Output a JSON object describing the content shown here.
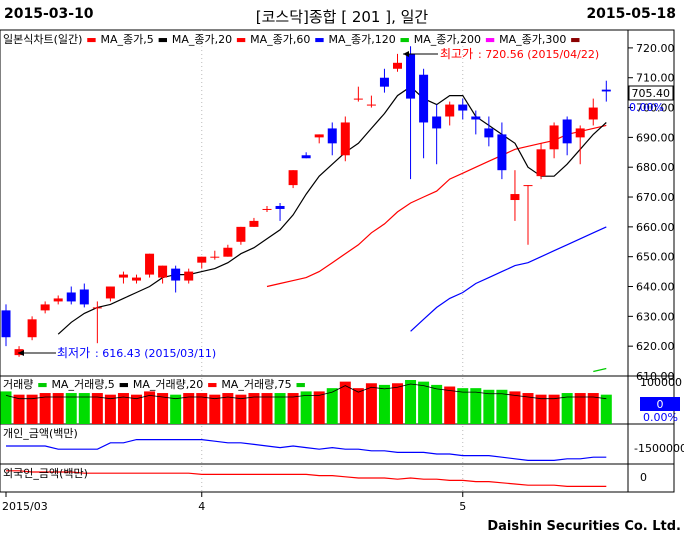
{
  "header": {
    "start_date": "2015-03-10",
    "title": "[코스닥]종합  [ 201 ],  일간",
    "end_date": "2015-05-18"
  },
  "footer": {
    "brand": "Daishin Securities Co. Ltd.",
    "period_label": "2015/03"
  },
  "colors": {
    "up": "#ff0000",
    "down": "#0000ff",
    "ma5": "#000000",
    "ma20": "#ff0000",
    "ma60": "#0000ff",
    "volume": "#00dd00"
  },
  "price_panel": {
    "legend": [
      {
        "text": "일본식차트(일간)",
        "color": "#ff0000"
      },
      {
        "text": "MA_종가,5",
        "color": "#000000"
      },
      {
        "text": "MA_종가,20",
        "color": "#ff0000"
      },
      {
        "text": "MA_종가,60",
        "color": "#0000ff"
      },
      {
        "text": "MA_종가,120",
        "color": "#00cc00"
      },
      {
        "text": "MA_종가,200",
        "color": "#ff00ff"
      },
      {
        "text": "MA_종가,300",
        "color": "#8b0000"
      }
    ],
    "high_prefix": "최고가",
    "high_value": ": 720.56 (2015/04/22)",
    "low_prefix": "최저가",
    "low_value": ": 616.43 (2015/03/11)",
    "current_price": "705.40",
    "current_change": "0.00%"
  },
  "volume_panel": {
    "legend": [
      {
        "text": "거래량",
        "color": "#00cc00"
      },
      {
        "text": "MA_거래량,5",
        "color": "#000000"
      },
      {
        "text": "MA_거래량,20",
        "color": "#ff0000"
      },
      {
        "text": "MA_거래량,75",
        "color": "#00cc00"
      }
    ],
    "tick": "100000",
    "current_value": "0",
    "current_change": "0.00%"
  },
  "individual_panel": {
    "legend": "개인_금액(백만)",
    "tick": "-1500000"
  },
  "foreign_panel": {
    "legend": "외국인_금액(백만)",
    "tick": "0"
  },
  "chart_data": {
    "type": "candlestick",
    "title": "[코스닥]종합  [ 201 ],  일간",
    "y_ticks": [
      610,
      620,
      630,
      640,
      650,
      660,
      670,
      680,
      690,
      700,
      710,
      720
    ],
    "ylim": [
      610,
      726
    ],
    "x_ticks": [
      "2015/03",
      "4",
      "5"
    ],
    "x_tick_index": [
      0,
      15,
      35
    ],
    "ohlc": [
      [
        632,
        634,
        620,
        623
      ],
      [
        617,
        620,
        616.43,
        619
      ],
      [
        623,
        630,
        622,
        629
      ],
      [
        632,
        635,
        631,
        634
      ],
      [
        635,
        637,
        634,
        636
      ],
      [
        638,
        640,
        634,
        635
      ],
      [
        639,
        641,
        633,
        634
      ],
      [
        633,
        635,
        621,
        633
      ],
      [
        636,
        640,
        635,
        640
      ],
      [
        643,
        645,
        641,
        644
      ],
      [
        642,
        644,
        641,
        643
      ],
      [
        644,
        651,
        643,
        651
      ],
      [
        643,
        647,
        641,
        647
      ],
      [
        646,
        647,
        638,
        642
      ],
      [
        642,
        646,
        641,
        645
      ],
      [
        648,
        650,
        646,
        650
      ],
      [
        650,
        652,
        649,
        650
      ],
      [
        650,
        654,
        650,
        653
      ],
      [
        655,
        660,
        654,
        660
      ],
      [
        660,
        663,
        660,
        662
      ],
      [
        666,
        667,
        665,
        666
      ],
      [
        667,
        668,
        662,
        666
      ],
      [
        674,
        679,
        673,
        679
      ],
      [
        684,
        685,
        683,
        683
      ],
      [
        690,
        691,
        688,
        691
      ],
      [
        693,
        695,
        684,
        688
      ],
      [
        684,
        697,
        682,
        695
      ],
      [
        703,
        707,
        702,
        703
      ],
      [
        701,
        704,
        700,
        701
      ],
      [
        710,
        713,
        705,
        707
      ],
      [
        713,
        718,
        712,
        715
      ],
      [
        718,
        720.56,
        676,
        703
      ],
      [
        711,
        713,
        683,
        695
      ],
      [
        697,
        701,
        681,
        693
      ],
      [
        697,
        702,
        694,
        701
      ],
      [
        701,
        703,
        696,
        699
      ],
      [
        697,
        699,
        691,
        696
      ],
      [
        693,
        697,
        687,
        690
      ],
      [
        691,
        695,
        676,
        679
      ],
      [
        669,
        679,
        662,
        671
      ],
      [
        674,
        674,
        654,
        674
      ],
      [
        677,
        688,
        676,
        686
      ],
      [
        686,
        695,
        683,
        694
      ],
      [
        696,
        697,
        684,
        688
      ],
      [
        690,
        694,
        681,
        693
      ],
      [
        696,
        703,
        694,
        700
      ],
      [
        706,
        709,
        702,
        705.4
      ]
    ],
    "ma5": [
      null,
      null,
      null,
      null,
      624,
      628,
      631,
      633,
      634,
      636,
      638,
      640,
      643,
      644,
      644,
      645,
      646,
      648,
      651,
      653,
      656,
      659,
      664,
      671,
      677,
      681,
      685,
      688,
      693,
      698,
      704,
      707,
      703,
      701,
      704,
      704,
      697,
      694,
      691,
      688,
      680,
      677,
      677,
      681,
      686,
      691,
      695
    ],
    "ma20": [
      null,
      null,
      null,
      null,
      null,
      null,
      null,
      null,
      null,
      null,
      null,
      null,
      null,
      null,
      null,
      null,
      null,
      null,
      null,
      null,
      640,
      641,
      642,
      643,
      645,
      648,
      651,
      654,
      658,
      661,
      665,
      668,
      670,
      672,
      676,
      678,
      680,
      682,
      684,
      686,
      687,
      688,
      689,
      691,
      692,
      693,
      694
    ],
    "ma60": [
      null,
      null,
      null,
      null,
      null,
      null,
      null,
      null,
      null,
      null,
      null,
      null,
      null,
      null,
      null,
      null,
      null,
      null,
      null,
      null,
      null,
      null,
      null,
      null,
      null,
      null,
      null,
      null,
      null,
      null,
      null,
      625,
      629,
      633,
      636,
      638,
      641,
      643,
      645,
      647,
      648,
      650,
      652,
      654,
      656,
      658,
      660
    ],
    "ma120": [
      null,
      null,
      null,
      null,
      null,
      null,
      null,
      null,
      null,
      null,
      null,
      null,
      null,
      null,
      null,
      null,
      null,
      null,
      null,
      null,
      null,
      null,
      null,
      null,
      null,
      null,
      null,
      null,
      null,
      null,
      null,
      null,
      null,
      null,
      null,
      null,
      null,
      null,
      null,
      null,
      null,
      null,
      null,
      null,
      null,
      611.5,
      612.5
    ],
    "volume_ylim": [
      0,
      1.35
    ],
    "volume": [
      1.0,
      0.9,
      0.9,
      0.95,
      0.95,
      0.95,
      0.95,
      0.95,
      0.9,
      0.95,
      0.9,
      1.0,
      0.95,
      0.9,
      0.95,
      0.95,
      0.9,
      0.95,
      0.9,
      0.95,
      0.95,
      0.95,
      0.95,
      1.0,
      1.0,
      1.1,
      1.3,
      1.1,
      1.25,
      1.2,
      1.25,
      1.55,
      1.3,
      1.2,
      1.15,
      1.1,
      1.1,
      1.05,
      1.05,
      1.0,
      0.95,
      0.9,
      0.9,
      0.95,
      0.95,
      0.95,
      0.9
    ],
    "individual": [
      0.5,
      0.5,
      0.5,
      0.5,
      0.6,
      0.6,
      0.6,
      0.6,
      0.4,
      0.4,
      0.3,
      0.3,
      0.3,
      0.3,
      0.3,
      0.3,
      0.35,
      0.4,
      0.4,
      0.45,
      0.5,
      0.55,
      0.5,
      0.55,
      0.6,
      0.55,
      0.6,
      0.6,
      0.65,
      0.65,
      0.7,
      0.7,
      0.7,
      0.75,
      0.75,
      0.8,
      0.8,
      0.8,
      0.85,
      0.9,
      0.95,
      0.95,
      0.95,
      0.9,
      0.9,
      0.85,
      0.85
    ],
    "foreign": [
      0.2,
      0.2,
      0.25,
      0.25,
      0.25,
      0.25,
      0.3,
      0.3,
      0.3,
      0.3,
      0.3,
      0.3,
      0.3,
      0.3,
      0.3,
      0.35,
      0.35,
      0.35,
      0.35,
      0.35,
      0.35,
      0.35,
      0.35,
      0.35,
      0.4,
      0.4,
      0.45,
      0.5,
      0.5,
      0.5,
      0.55,
      0.5,
      0.55,
      0.55,
      0.6,
      0.6,
      0.65,
      0.65,
      0.7,
      0.75,
      0.8,
      0.8,
      0.8,
      0.85,
      0.85,
      0.85,
      0.85
    ]
  }
}
